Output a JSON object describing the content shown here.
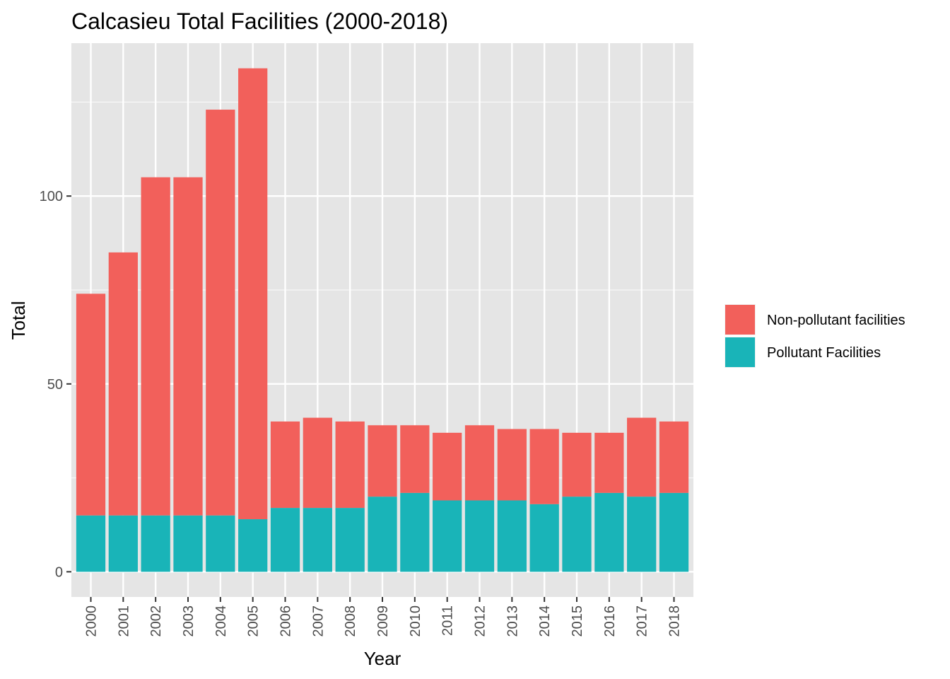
{
  "chart_data": {
    "type": "bar",
    "stacked": true,
    "title": "Calcasieu Total Facilities (2000-2018)",
    "xlabel": "Year",
    "ylabel": "Total",
    "categories": [
      "2000",
      "2001",
      "2002",
      "2003",
      "2004",
      "2005",
      "2006",
      "2007",
      "2008",
      "2009",
      "2010",
      "2011",
      "2012",
      "2013",
      "2014",
      "2015",
      "2016",
      "2017",
      "2018"
    ],
    "series": [
      {
        "name": "Pollutant Facilities",
        "color": "#19b4b8",
        "values": [
          15,
          15,
          15,
          15,
          15,
          14,
          17,
          17,
          17,
          20,
          21,
          19,
          19,
          19,
          18,
          20,
          21,
          20,
          21
        ]
      },
      {
        "name": "Non-pollutant facilities",
        "color": "#f2605b",
        "values": [
          59,
          70,
          90,
          90,
          108,
          120,
          23,
          24,
          23,
          19,
          18,
          18,
          20,
          19,
          20,
          17,
          16,
          21,
          19
        ]
      }
    ],
    "legend_order": [
      "Non-pollutant facilities",
      "Pollutant Facilities"
    ],
    "ylim": [
      -6.7,
      140.7
    ],
    "yticks": [
      0,
      50,
      100
    ],
    "grid": true,
    "panel_background": "#e5e5e5",
    "grid_color": "#ffffff",
    "legend_position": "right"
  }
}
